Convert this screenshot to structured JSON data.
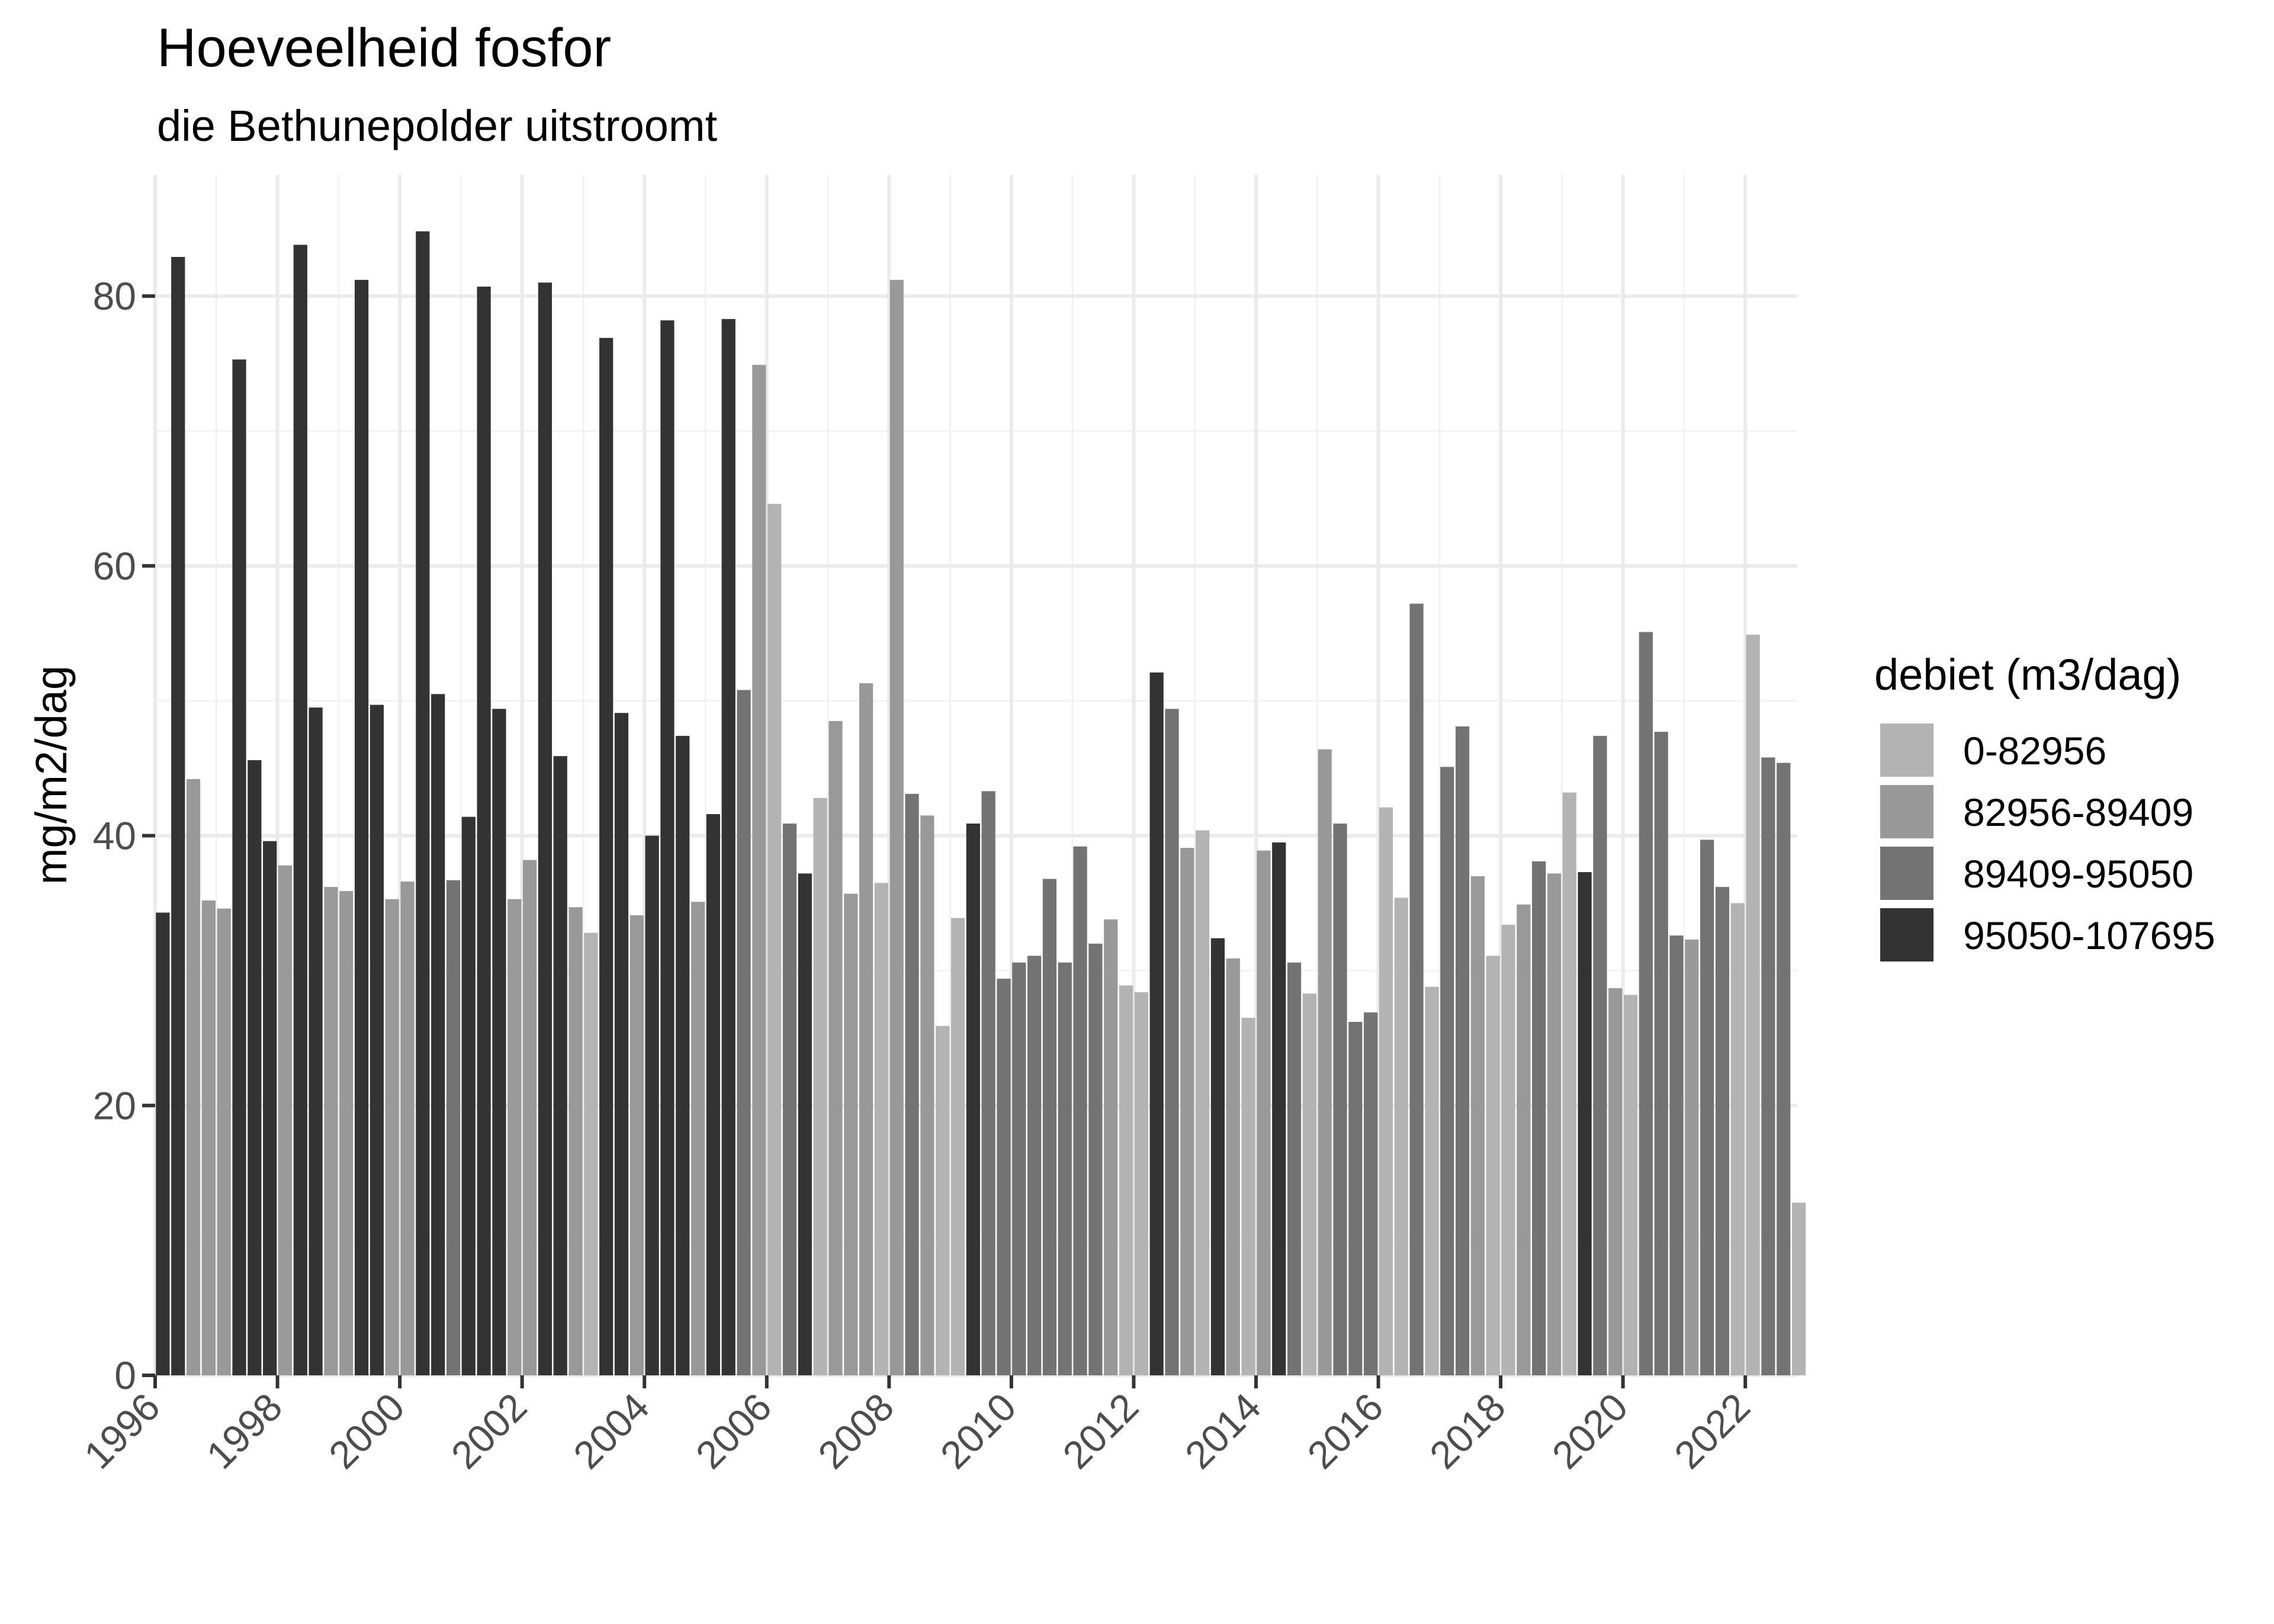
{
  "chart_data": {
    "type": "bar",
    "title": "Hoeveelheid fosfor",
    "subtitle": "die Bethunepolder uitstroomt",
    "xlabel": "",
    "ylabel": "mg/m2/dag",
    "xlim": [
      1996,
      2022.85
    ],
    "ylim": [
      0,
      89
    ],
    "x_ticks": [
      "1996",
      "1998",
      "2000",
      "2002",
      "2004",
      "2006",
      "2008",
      "2010",
      "2012",
      "2014",
      "2016",
      "2018",
      "2020",
      "2022"
    ],
    "y_ticks": [
      "0",
      "20",
      "40",
      "60",
      "80"
    ],
    "grid": true,
    "legend": {
      "title": "debiet (m3/dag)",
      "position": "right",
      "entries": [
        {
          "label": "0-82956",
          "color": "#b3b3b3"
        },
        {
          "label": "82956-89409",
          "color": "#999999"
        },
        {
          "label": "89409-95050",
          "color": "#737373"
        },
        {
          "label": "95050-107695",
          "color": "#333333"
        }
      ]
    },
    "bar_period": "quarter",
    "values": [
      [
        34.3,
        82.9,
        44.2,
        35.2
      ],
      [
        34.6,
        75.3,
        45.6,
        39.6
      ],
      [
        37.8,
        83.8,
        49.5,
        36.2
      ],
      [
        35.9,
        81.2,
        49.7,
        35.3
      ],
      [
        36.6,
        84.8,
        50.5,
        36.7
      ],
      [
        41.4,
        80.7,
        49.4,
        35.3
      ],
      [
        38.2,
        81.0,
        45.9,
        34.7
      ],
      [
        32.8,
        76.9,
        49.1,
        34.1
      ],
      [
        40.0,
        78.2,
        47.4,
        35.1
      ],
      [
        41.6,
        78.3,
        50.8,
        74.9
      ],
      [
        64.6,
        40.9,
        37.2,
        42.8
      ],
      [
        48.5,
        35.7,
        51.3,
        36.5
      ],
      [
        81.2,
        43.1,
        41.5,
        25.9
      ],
      [
        33.9,
        40.9,
        43.3,
        29.4
      ],
      [
        30.6,
        31.1,
        36.8,
        30.6
      ],
      [
        39.2,
        32.0,
        33.8,
        28.9
      ],
      [
        28.4,
        52.1,
        49.4,
        39.1
      ],
      [
        40.4,
        32.4,
        30.9,
        26.5
      ],
      [
        38.9,
        39.5,
        30.6,
        28.3
      ],
      [
        46.4,
        40.9,
        26.2,
        26.9
      ],
      [
        42.1,
        35.4,
        57.2,
        28.8
      ],
      [
        45.1,
        48.1,
        37.0,
        31.1
      ],
      [
        33.4,
        34.9,
        38.1,
        37.2
      ],
      [
        43.2,
        37.3,
        47.4,
        28.7
      ],
      [
        28.2,
        55.1,
        47.7,
        32.6
      ],
      [
        32.3,
        39.7,
        36.2,
        35.0
      ],
      [
        54.9,
        45.8,
        45.4,
        12.8
      ]
    ],
    "categories": [
      [
        3,
        3,
        1,
        1
      ],
      [
        1,
        3,
        3,
        3
      ],
      [
        1,
        3,
        3,
        1
      ],
      [
        1,
        3,
        3,
        1
      ],
      [
        1,
        3,
        3,
        2
      ],
      [
        3,
        3,
        3,
        1
      ],
      [
        1,
        3,
        3,
        1
      ],
      [
        0,
        3,
        3,
        1
      ],
      [
        3,
        3,
        3,
        1
      ],
      [
        3,
        3,
        2,
        1
      ],
      [
        0,
        2,
        3,
        0
      ],
      [
        1,
        1,
        1,
        0
      ],
      [
        1,
        2,
        1,
        0
      ],
      [
        0,
        3,
        2,
        2
      ],
      [
        2,
        2,
        2,
        2
      ],
      [
        2,
        2,
        1,
        0
      ],
      [
        0,
        3,
        2,
        1
      ],
      [
        0,
        3,
        1,
        0
      ],
      [
        1,
        3,
        2,
        0
      ],
      [
        1,
        2,
        2,
        2
      ],
      [
        0,
        0,
        2,
        0
      ],
      [
        2,
        2,
        1,
        0
      ],
      [
        0,
        1,
        2,
        1
      ],
      [
        0,
        3,
        2,
        1
      ],
      [
        0,
        2,
        2,
        2
      ],
      [
        1,
        2,
        2,
        0
      ],
      [
        0,
        2,
        2,
        0
      ]
    ]
  }
}
